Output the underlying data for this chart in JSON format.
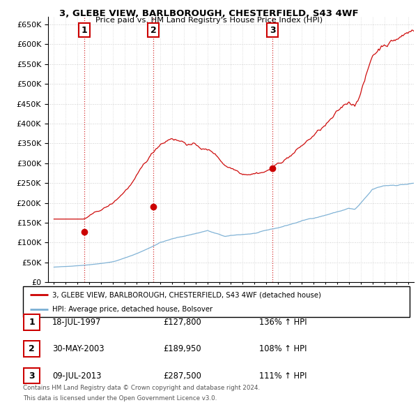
{
  "title": "3, GLEBE VIEW, BARLBOROUGH, CHESTERFIELD, S43 4WF",
  "subtitle": "Price paid vs. HM Land Registry's House Price Index (HPI)",
  "legend_line1": "3, GLEBE VIEW, BARLBOROUGH, CHESTERFIELD, S43 4WF (detached house)",
  "legend_line2": "HPI: Average price, detached house, Bolsover",
  "sale_points": [
    {
      "label": "1",
      "date_num": 1997.55,
      "price": 127800
    },
    {
      "label": "2",
      "date_num": 2003.42,
      "price": 189950
    },
    {
      "label": "3",
      "date_num": 2013.52,
      "price": 287500
    }
  ],
  "table_rows": [
    {
      "num": "1",
      "date": "18-JUL-1997",
      "price": "£127,800",
      "change": "136% ↑ HPI"
    },
    {
      "num": "2",
      "date": "30-MAY-2003",
      "price": "£189,950",
      "change": "108% ↑ HPI"
    },
    {
      "num": "3",
      "date": "09-JUL-2013",
      "price": "£287,500",
      "change": "111% ↑ HPI"
    }
  ],
  "footer1": "Contains HM Land Registry data © Crown copyright and database right 2024.",
  "footer2": "This data is licensed under the Open Government Licence v3.0.",
  "red_color": "#cc0000",
  "blue_color": "#7aafd4",
  "background": "#ffffff",
  "ylim": [
    0,
    670000
  ],
  "xlim_start": 1994.5,
  "xlim_end": 2025.5,
  "yticks": [
    0,
    50000,
    100000,
    150000,
    200000,
    250000,
    300000,
    350000,
    400000,
    450000,
    500000,
    550000,
    600000,
    650000
  ]
}
